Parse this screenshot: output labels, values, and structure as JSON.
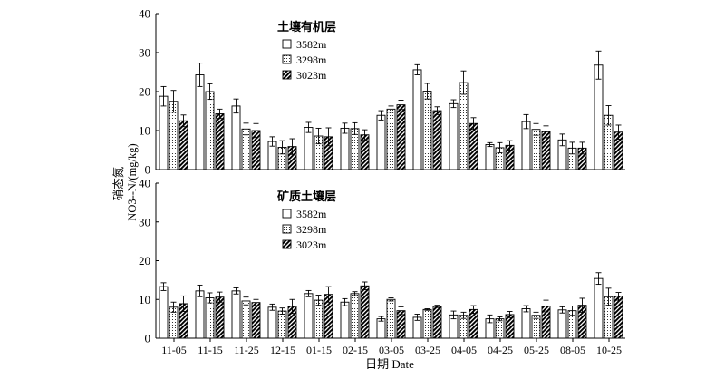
{
  "chart_data": [
    {
      "type": "bar",
      "title": "",
      "legend_title": "土壤有机层",
      "legend_position": "top-left",
      "categories": [
        "11-05",
        "11-15",
        "11-25",
        "12-15",
        "01-15",
        "02-15",
        "03-05",
        "03-25",
        "04-05",
        "04-25",
        "05-25",
        "08-05",
        "10-25"
      ],
      "series": [
        {
          "name": "3582m",
          "pattern": "white",
          "values": [
            18.8,
            24.3,
            16.3,
            7.2,
            10.8,
            10.6,
            13.9,
            25.6,
            16.9,
            6.4,
            12.3,
            7.6,
            26.8
          ],
          "errors": [
            2.5,
            3.0,
            1.8,
            1.2,
            1.3,
            1.3,
            1.2,
            1.3,
            1.0,
            0.5,
            1.8,
            1.5,
            3.6
          ]
        },
        {
          "name": "3298m",
          "pattern": "dotted",
          "values": [
            17.5,
            20.0,
            10.4,
            5.7,
            8.6,
            10.5,
            15.5,
            20.1,
            22.3,
            5.6,
            10.3,
            5.5,
            13.9
          ],
          "errors": [
            2.8,
            2.0,
            1.5,
            1.7,
            2.0,
            1.5,
            0.8,
            2.0,
            3.0,
            1.3,
            1.5,
            1.5,
            2.5
          ]
        },
        {
          "name": "3023m",
          "pattern": "hatched",
          "values": [
            12.5,
            14.3,
            10.0,
            5.9,
            8.4,
            8.9,
            16.6,
            15.1,
            11.8,
            6.2,
            9.7,
            5.5,
            9.6
          ],
          "errors": [
            1.5,
            1.2,
            1.8,
            2.0,
            2.3,
            1.3,
            1.2,
            1.0,
            1.5,
            1.2,
            1.5,
            1.5,
            1.8
          ]
        }
      ],
      "ylim": [
        0,
        40
      ],
      "yticks": [
        0,
        10,
        20,
        30,
        40
      ]
    },
    {
      "type": "bar",
      "title": "",
      "legend_title": "矿质土壤层",
      "legend_position": "top-left",
      "categories": [
        "11-05",
        "11-15",
        "11-25",
        "12-15",
        "01-15",
        "02-15",
        "03-05",
        "03-25",
        "04-05",
        "04-25",
        "05-25",
        "08-05",
        "10-25"
      ],
      "series": [
        {
          "name": "3582m",
          "pattern": "white",
          "values": [
            13.3,
            12.2,
            12.2,
            8.0,
            11.5,
            9.3,
            5.0,
            5.4,
            6.0,
            5.0,
            7.6,
            7.3,
            15.4
          ],
          "errors": [
            1.0,
            1.5,
            0.8,
            0.8,
            0.8,
            0.9,
            0.6,
            0.8,
            1.0,
            1.0,
            0.8,
            0.8,
            1.5
          ]
        },
        {
          "name": "3298m",
          "pattern": "dotted",
          "values": [
            8.0,
            10.4,
            9.6,
            7.0,
            9.8,
            11.5,
            10.0,
            7.4,
            5.9,
            5.0,
            5.9,
            7.1,
            10.7
          ],
          "errors": [
            1.3,
            1.3,
            1.0,
            0.8,
            1.3,
            0.5,
            0.4,
            0.2,
            0.8,
            0.5,
            0.8,
            1.2,
            2.2
          ]
        },
        {
          "name": "3023m",
          "pattern": "hatched",
          "values": [
            8.9,
            10.6,
            9.2,
            8.2,
            11.3,
            13.5,
            7.1,
            8.2,
            7.4,
            6.1,
            8.3,
            8.5,
            10.8
          ],
          "errors": [
            2.0,
            1.3,
            0.8,
            1.8,
            2.0,
            1.0,
            1.0,
            0.3,
            1.0,
            0.8,
            1.5,
            1.8,
            1.0
          ]
        }
      ],
      "ylim": [
        0,
        40
      ],
      "yticks": [
        0,
        10,
        20,
        30,
        40
      ]
    }
  ],
  "xlabel": "日期 Date",
  "ylabel_top": "硝态氮",
  "ylabel_bottom": "NO3--N/(mg/kg)"
}
